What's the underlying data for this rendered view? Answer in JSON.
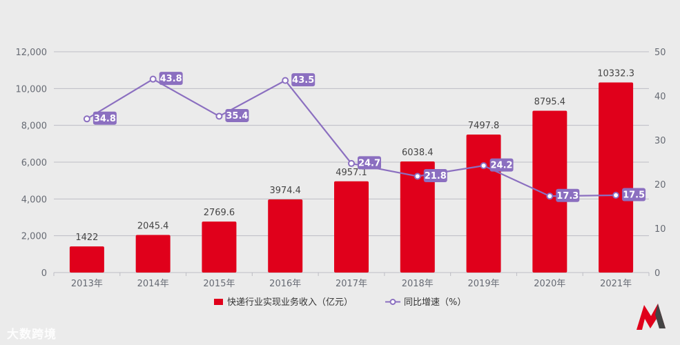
{
  "chart_data": {
    "type": "bar+line",
    "categories": [
      "2013年",
      "2014年",
      "2015年",
      "2016年",
      "2017年",
      "2018年",
      "2019年",
      "2020年",
      "2021年"
    ],
    "series": [
      {
        "name": "快递行业实现业务收入（亿元）",
        "type": "bar",
        "axis": "left",
        "values": [
          1422,
          2045.4,
          2769.6,
          3974.4,
          4957.1,
          6038.4,
          7497.8,
          8795.4,
          10332.3
        ],
        "labels": [
          "1422",
          "2045.4",
          "2769.6",
          "3974.4",
          "4957.1",
          "6038.4",
          "7497.8",
          "8795.4",
          "10332.3"
        ]
      },
      {
        "name": "同比增速（%）",
        "type": "line",
        "axis": "right",
        "values": [
          34.8,
          43.8,
          35.4,
          43.5,
          24.7,
          21.8,
          24.2,
          17.3,
          17.5
        ],
        "labels": [
          "34.8",
          "43.8",
          "35.4",
          "43.5",
          "24.7",
          "21.8",
          "24.2",
          "17.3",
          "17.5"
        ]
      }
    ],
    "y_left": {
      "min": 0,
      "max": 12000,
      "ticks": [
        "0",
        "2,000",
        "4,000",
        "6,000",
        "8,000",
        "10,000",
        "12,000"
      ]
    },
    "y_right": {
      "min": 0,
      "max": 50,
      "ticks": [
        "0",
        "10",
        "20",
        "30",
        "40",
        "50"
      ]
    },
    "grid": true,
    "legend": "bottom-center",
    "colors": {
      "bar": "#e0001b",
      "line": "#8b6fc0",
      "grid": "#bdbdc4"
    }
  },
  "watermark": "大数跨境"
}
